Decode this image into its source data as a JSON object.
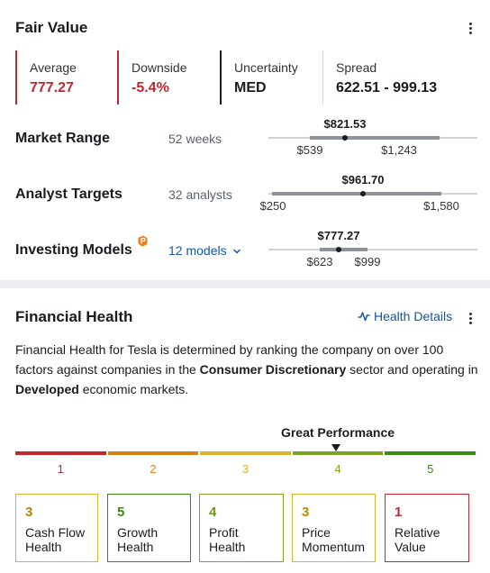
{
  "fair_value": {
    "title": "Fair Value",
    "stats": [
      {
        "label": "Average",
        "value": "777.27",
        "color": "#c1272d"
      },
      {
        "label": "Downside",
        "value": "-5.4%",
        "color": "#c1272d"
      },
      {
        "label": "Uncertainty",
        "value": "MED",
        "color": "#181c21"
      },
      {
        "label": "Spread",
        "value": "622.51 - 999.13",
        "color": "#181c21"
      }
    ],
    "rows": [
      {
        "label": "Market Range",
        "sub": "52 weeks",
        "current": "$821.53",
        "low": "$539",
        "high": "$1,243"
      },
      {
        "label": "Analyst Targets",
        "sub": "32 analysts",
        "current": "$961.70",
        "low": "$250",
        "high": "$1,580"
      },
      {
        "label": "Investing Models",
        "sub": "12 models",
        "current": "$777.27",
        "low": "$623",
        "high": "$999",
        "badge_icon": "pro-badge-icon",
        "sub_icon": "chevron-down-icon"
      }
    ]
  },
  "financial_health": {
    "title": "Financial Health",
    "details_link": "Health Details",
    "details_icon": "pulse-icon",
    "description": {
      "part1": "Financial Health for Tesla is determined by ranking the company on over 100 factors against companies in the ",
      "sector": "Consumer Discretionary",
      "part2": " sector and operating in ",
      "market": "Developed",
      "part3": " economic markets."
    },
    "performance_label": "Great Performance",
    "performance_score": 4,
    "scale": [
      {
        "num": "1",
        "color": "#c1272d"
      },
      {
        "num": "2",
        "color": "#d98014"
      },
      {
        "num": "3",
        "color": "#d9b42e"
      },
      {
        "num": "4",
        "color": "#7da324"
      },
      {
        "num": "5",
        "color": "#3c8a16"
      }
    ],
    "tiles": [
      {
        "score": "3",
        "name1": "Cash Flow",
        "name2": "Health",
        "color": "#d9b42e",
        "text_color": "#b08a00"
      },
      {
        "score": "5",
        "name1": "Growth",
        "name2": "Health",
        "color": "#3c8a16",
        "text_color": "#3c8a16"
      },
      {
        "score": "4",
        "name1": "Profit",
        "name2": "Health",
        "color": "#7da324",
        "text_color": "#6d9a12"
      },
      {
        "score": "3",
        "name1": "Price",
        "name2": "Momentum",
        "color": "#d9b42e",
        "text_color": "#b08a00"
      },
      {
        "score": "1",
        "name1": "Relative",
        "name2": "Value",
        "color": "#c1272d",
        "text_color": "#c1272d"
      }
    ]
  }
}
